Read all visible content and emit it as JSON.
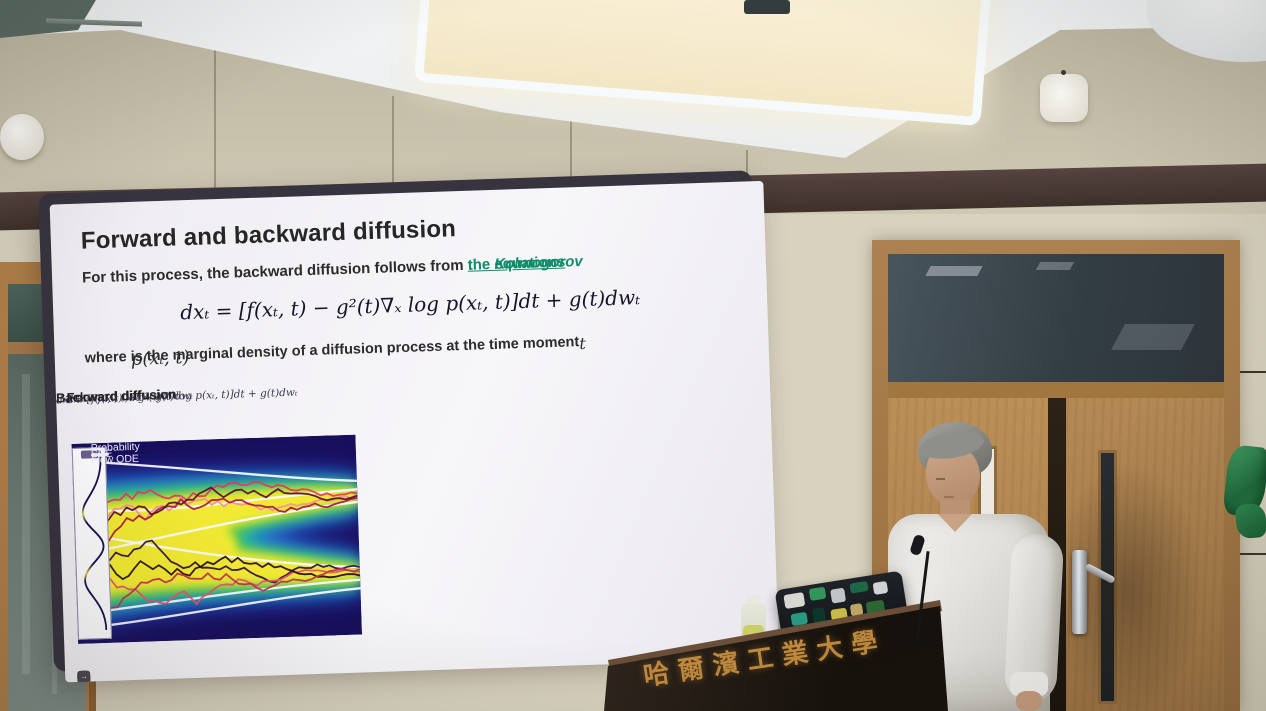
{
  "scene": {
    "podium_text": "哈爾濱工業大學"
  },
  "slide": {
    "title": "Forward and backward diffusion",
    "intro": {
      "prefix": "For this process, the backward diffusion follows from ",
      "link": "the ",
      "link_name": "Kolmogorov",
      "link_tail": " equations",
      "suffix": ":"
    },
    "main_formula": "dxₜ = [f(xₜ, t) − g²(t)∇ₓ log p(xₜ, t)]dt + g(t)dwₜ",
    "where": {
      "lead": "where",
      "density": "p(xₜ, t)",
      "rest": "is the marginal density of a diffusion process at the time moment",
      "tail": "t"
    },
    "panels": {
      "forward": {
        "title": "Forward diffusion",
        "formula": "dxₜ = f(xₜ, t)dt + g(t)dwₜ"
      },
      "backward": {
        "title": "Backward diffusion",
        "formula": "dxₜ = [f(xₜ, t) − g²(t)∇ₓ log p(xₜ, t)]dt + g(t)dwₜ"
      }
    },
    "legend": [
      {
        "label": "SDE",
        "color": "#e8385e"
      },
      {
        "label": "Probability Flow ODE",
        "color": "#f3f0ff"
      }
    ],
    "controls": [
      {
        "name": "back",
        "glyph": "←"
      },
      {
        "name": "pen",
        "glyph": "✎"
      },
      {
        "name": "cc",
        "glyph": "CC"
      },
      {
        "name": "more",
        "glyph": "⋯"
      },
      {
        "name": "next",
        "glyph": "→"
      }
    ],
    "colors": {
      "link_green": "#0e8c68",
      "heatmap_bg": "#180f5c",
      "heatmap_ramp": [
        "#2945cc",
        "#17aecb",
        "#4ec44b",
        "#f2ea30"
      ],
      "sde_line": "#e8385e",
      "ode_line": "#fbfaff",
      "podium_gold": "#c08a3e"
    }
  }
}
